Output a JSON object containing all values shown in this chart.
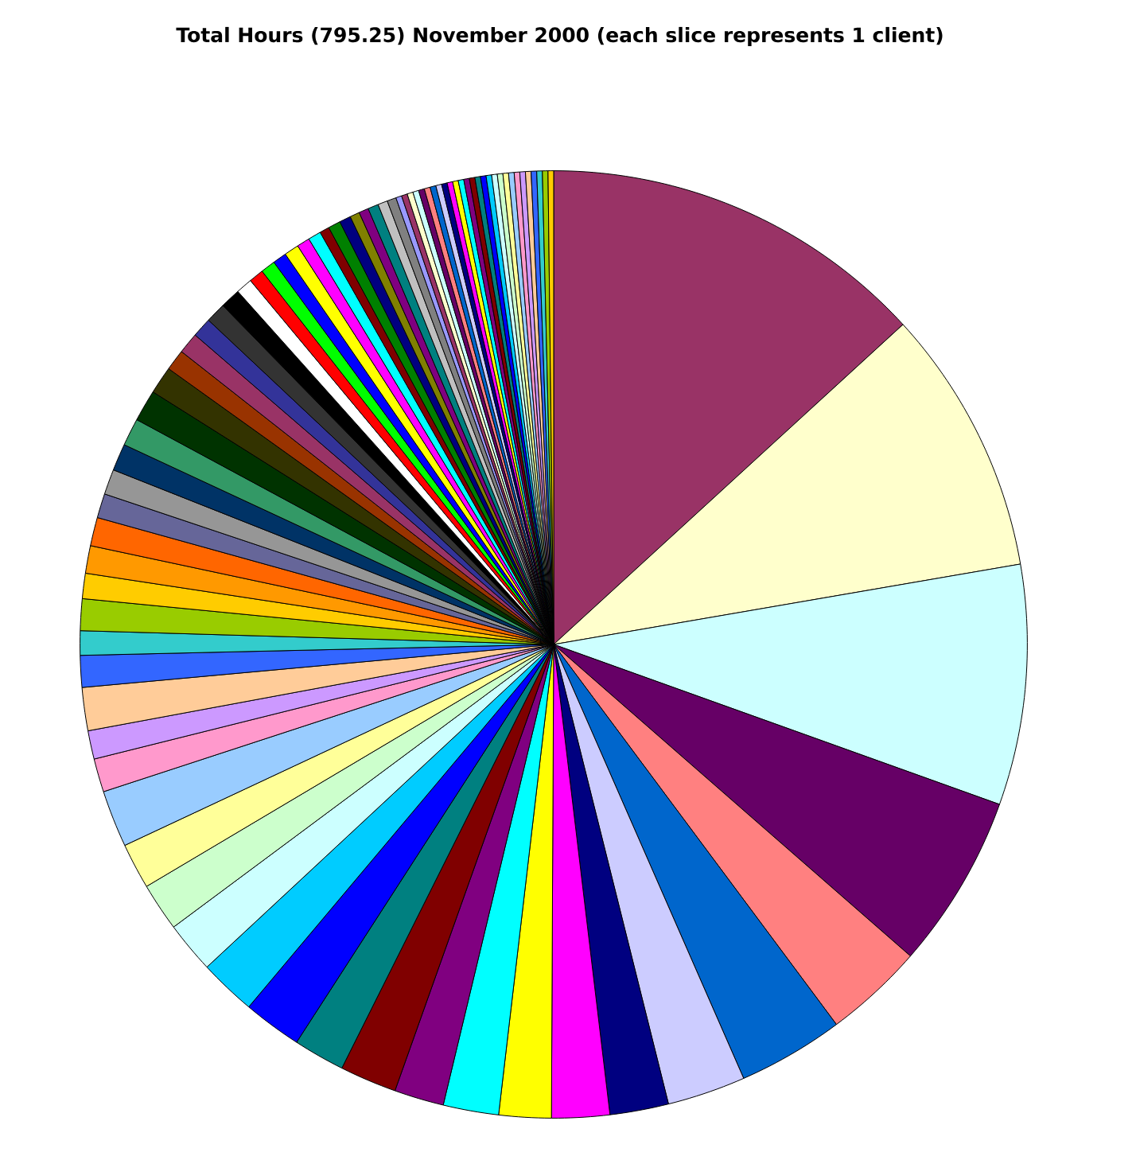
{
  "chart_data": {
    "type": "pie",
    "title": "Total Hours (795.25) November 2000 (each slice represents 1 client)",
    "categories": [
      null,
      null,
      null,
      null,
      null,
      null,
      null,
      null,
      null,
      null,
      null,
      null,
      null,
      null,
      null,
      null,
      null,
      null,
      null,
      null,
      null,
      null,
      null,
      null,
      null,
      null,
      null,
      null,
      null,
      null,
      null,
      null,
      null,
      null,
      null,
      null,
      null,
      null,
      null,
      null,
      null,
      null,
      null,
      null,
      null,
      null,
      null,
      null,
      null,
      null,
      null,
      null,
      null,
      null,
      null,
      null,
      null,
      null,
      null,
      null,
      null,
      null,
      null,
      null,
      null,
      null,
      null,
      null,
      null,
      null,
      null,
      null,
      null,
      null,
      null,
      null,
      null,
      null,
      null,
      null,
      null,
      null,
      null
    ],
    "values": [
      13.19,
      9.08,
      8.19,
      5.94,
      3.39,
      3.61,
      2.67,
      2.0,
      1.97,
      1.78,
      1.89,
      1.69,
      1.94,
      1.75,
      2.0,
      1.94,
      1.75,
      1.64,
      1.56,
      1.94,
      1.14,
      0.97,
      1.47,
      1.08,
      0.83,
      1.08,
      0.86,
      0.94,
      0.97,
      0.83,
      0.86,
      0.92,
      0.94,
      1.08,
      0.94,
      0.72,
      0.72,
      0.67,
      0.69,
      0.69,
      0.56,
      0.5,
      0.5,
      0.47,
      0.5,
      0.44,
      0.44,
      0.33,
      0.42,
      0.39,
      0.33,
      0.33,
      0.36,
      0.33,
      0.31,
      0.2,
      0.2,
      0.2,
      0.2,
      0.2,
      0.2,
      0.2,
      0.2,
      0.19,
      0.19,
      0.19,
      0.19,
      0.19,
      0.19,
      0.19,
      0.19,
      0.19,
      0.19,
      0.19,
      0.19,
      0.19,
      0.19,
      0.19,
      0.19,
      0.19,
      0.19,
      0.19,
      0.19
    ],
    "colors": [
      "#993366",
      "#FFFFCC",
      "#CCFFFF",
      "#660066",
      "#FF8080",
      "#0066CC",
      "#CCCCFF",
      "#000080",
      "#FF00FF",
      "#FFFF00",
      "#00FFFF",
      "#800080",
      "#800000",
      "#008080",
      "#0000FF",
      "#00CCFF",
      "#CCFFFF",
      "#CCFFCC",
      "#FFFF99",
      "#99CCFF",
      "#FF99CC",
      "#CC99FF",
      "#FFCC99",
      "#3366FF",
      "#33CCCC",
      "#99CC00",
      "#FFCC00",
      "#FF9900",
      "#FF6600",
      "#666699",
      "#969696",
      "#003366",
      "#339966",
      "#003300",
      "#333300",
      "#993300",
      "#993366",
      "#333399",
      "#333333",
      "#000000",
      "#FFFFFF",
      "#FF0000",
      "#00FF00",
      "#0000FF",
      "#FFFF00",
      "#FF00FF",
      "#00FFFF",
      "#800000",
      "#008000",
      "#000080",
      "#808000",
      "#800080",
      "#008080",
      "#C0C0C0",
      "#808080",
      "#9999FF",
      "#993366",
      "#FFFFCC",
      "#CCFFFF",
      "#660066",
      "#FF8080",
      "#0066CC",
      "#CCCCFF",
      "#000080",
      "#FF00FF",
      "#FFFF00",
      "#00FFFF",
      "#800080",
      "#800000",
      "#008080",
      "#0000FF",
      "#00CCFF",
      "#CCFFFF",
      "#CCFFCC",
      "#FFFF99",
      "#99CCFF",
      "#FF99CC",
      "#CC99FF",
      "#FFCC99",
      "#3366FF",
      "#33CCCC",
      "#99CC00",
      "#FFCC00"
    ]
  }
}
